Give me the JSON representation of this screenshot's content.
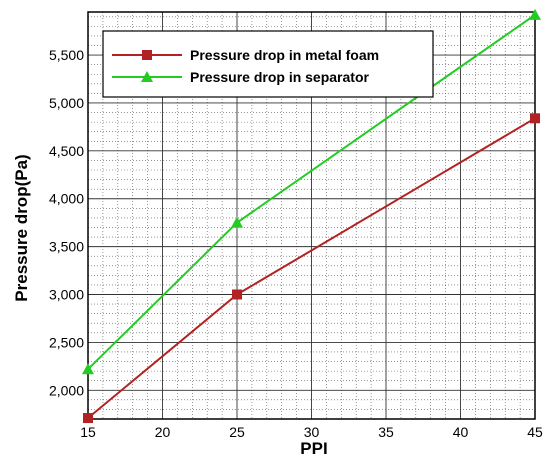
{
  "chart_data": {
    "type": "line",
    "xlabel": "PPI",
    "ylabel": "Pressure drop(Pa)",
    "xlim": [
      15,
      45
    ],
    "ylim": [
      1700,
      5950
    ],
    "x_ticks": [
      15,
      20,
      25,
      30,
      35,
      40,
      45
    ],
    "x_tick_labels": [
      "15",
      "20",
      "25",
      "30",
      "35",
      "40",
      "45"
    ],
    "y_ticks": [
      2000,
      2500,
      3000,
      3500,
      4000,
      4500,
      5000,
      5500
    ],
    "y_tick_labels": [
      "2,000",
      "2,500",
      "3,000",
      "3,500",
      "4,000",
      "4,500",
      "5,000",
      "5,500"
    ],
    "grid": true,
    "minor_grid": true,
    "legend_position": "top-left",
    "series": [
      {
        "name": "Pressure drop in metal foam",
        "color": "#b22222",
        "marker": "square",
        "x": [
          15,
          25,
          45
        ],
        "y": [
          1710,
          3000,
          4840
        ]
      },
      {
        "name": "Pressure drop in separator",
        "color": "#22cc22",
        "marker": "triangle",
        "x": [
          15,
          25,
          45
        ],
        "y": [
          2220,
          3750,
          5920
        ]
      }
    ]
  }
}
